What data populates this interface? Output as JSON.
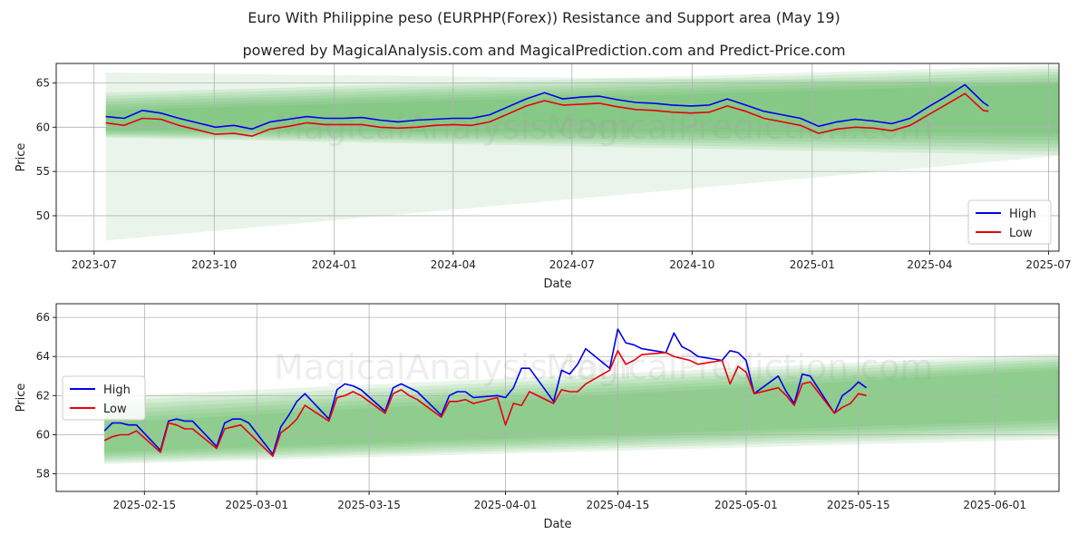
{
  "title": "Euro With Philippine peso (EURPHP(Forex)) Resistance and Support area (May 19)",
  "subtitle": "powered by MagicalAnalysis.com and MagicalPrediction.com and Predict-Price.com",
  "watermarks": [
    "MagicalAnalysis.com",
    "MagicalPrediction.com"
  ],
  "colors": {
    "high": "#0000ee",
    "low": "#e8000b",
    "band": "#4caf50"
  },
  "chart_data": [
    {
      "type": "line",
      "xlabel": "Date",
      "ylabel": "Price",
      "x_ticks": [
        "2023-07",
        "2023-10",
        "2024-01",
        "2024-04",
        "2024-07",
        "2024-10",
        "2025-01",
        "2025-04",
        "2025-07"
      ],
      "y_ticks": [
        50,
        55,
        60,
        65
      ],
      "xlim": [
        "2023-06-02",
        "2025-07-09"
      ],
      "ylim": [
        46.0,
        67.2
      ],
      "grid": true,
      "legend_position": "lower-right",
      "legend": [
        "High",
        "Low"
      ],
      "series": [
        {
          "name": "High",
          "x": [
            "2023-07-10",
            "2023-07-24",
            "2023-08-07",
            "2023-08-21",
            "2023-09-04",
            "2023-09-18",
            "2023-10-02",
            "2023-10-16",
            "2023-10-30",
            "2023-11-13",
            "2023-11-27",
            "2023-12-11",
            "2023-12-25",
            "2024-01-08",
            "2024-01-22",
            "2024-02-05",
            "2024-02-19",
            "2024-03-04",
            "2024-03-18",
            "2024-04-01",
            "2024-04-15",
            "2024-04-29",
            "2024-05-13",
            "2024-05-27",
            "2024-06-10",
            "2024-06-24",
            "2024-07-08",
            "2024-07-22",
            "2024-08-05",
            "2024-08-19",
            "2024-09-02",
            "2024-09-16",
            "2024-09-30",
            "2024-10-14",
            "2024-10-28",
            "2024-11-11",
            "2024-11-25",
            "2024-12-09",
            "2024-12-23",
            "2025-01-06",
            "2025-01-20",
            "2025-02-03",
            "2025-02-17",
            "2025-03-03",
            "2025-03-17",
            "2025-03-31",
            "2025-04-14",
            "2025-04-28",
            "2025-05-12",
            "2025-05-16"
          ],
          "values": [
            61.2,
            61.0,
            61.9,
            61.6,
            61.0,
            60.5,
            60.0,
            60.2,
            59.8,
            60.6,
            60.9,
            61.2,
            61.0,
            61.0,
            61.1,
            60.8,
            60.6,
            60.8,
            60.9,
            61.0,
            61.0,
            61.4,
            62.3,
            63.2,
            63.9,
            63.2,
            63.4,
            63.5,
            63.1,
            62.8,
            62.7,
            62.5,
            62.4,
            62.5,
            63.2,
            62.5,
            61.8,
            61.4,
            61.0,
            60.1,
            60.6,
            60.9,
            60.7,
            60.4,
            61.0,
            62.3,
            63.5,
            64.8,
            62.8,
            62.4
          ]
        },
        {
          "name": "Low",
          "x": [
            "2023-07-10",
            "2023-07-24",
            "2023-08-07",
            "2023-08-21",
            "2023-09-04",
            "2023-09-18",
            "2023-10-02",
            "2023-10-16",
            "2023-10-30",
            "2023-11-13",
            "2023-11-27",
            "2023-12-11",
            "2023-12-25",
            "2024-01-08",
            "2024-01-22",
            "2024-02-05",
            "2024-02-19",
            "2024-03-04",
            "2024-03-18",
            "2024-04-01",
            "2024-04-15",
            "2024-04-29",
            "2024-05-13",
            "2024-05-27",
            "2024-06-10",
            "2024-06-24",
            "2024-07-08",
            "2024-07-22",
            "2024-08-05",
            "2024-08-19",
            "2024-09-02",
            "2024-09-16",
            "2024-09-30",
            "2024-10-14",
            "2024-10-28",
            "2024-11-11",
            "2024-11-25",
            "2024-12-09",
            "2024-12-23",
            "2025-01-06",
            "2025-01-20",
            "2025-02-03",
            "2025-02-17",
            "2025-03-03",
            "2025-03-17",
            "2025-03-31",
            "2025-04-14",
            "2025-04-28",
            "2025-05-12",
            "2025-05-16"
          ],
          "values": [
            60.5,
            60.2,
            61.0,
            60.9,
            60.2,
            59.7,
            59.2,
            59.3,
            59.0,
            59.8,
            60.1,
            60.5,
            60.3,
            60.3,
            60.3,
            60.0,
            59.9,
            60.0,
            60.2,
            60.3,
            60.2,
            60.6,
            61.5,
            62.4,
            63.0,
            62.5,
            62.6,
            62.7,
            62.3,
            62.0,
            61.9,
            61.7,
            61.6,
            61.7,
            62.4,
            61.8,
            61.0,
            60.6,
            60.2,
            59.3,
            59.8,
            60.0,
            59.9,
            59.6,
            60.2,
            61.4,
            62.6,
            63.8,
            61.9,
            61.8
          ]
        }
      ]
    },
    {
      "type": "line",
      "xlabel": "Date",
      "ylabel": "Price",
      "x_ticks": [
        "2025-02-15",
        "2025-03-01",
        "2025-03-15",
        "2025-04-01",
        "2025-04-15",
        "2025-05-01",
        "2025-05-15",
        "2025-06-01"
      ],
      "y_ticks": [
        58,
        60,
        62,
        64,
        66
      ],
      "xlim": [
        "2025-02-04",
        "2025-06-09"
      ],
      "ylim": [
        57.1,
        66.7
      ],
      "grid": true,
      "legend_position": "upper-left",
      "legend": [
        "High",
        "Low"
      ],
      "series": [
        {
          "name": "High",
          "x": [
            "2025-02-10",
            "2025-02-11",
            "2025-02-12",
            "2025-02-13",
            "2025-02-14",
            "2025-02-17",
            "2025-02-18",
            "2025-02-19",
            "2025-02-20",
            "2025-02-21",
            "2025-02-24",
            "2025-02-25",
            "2025-02-26",
            "2025-02-27",
            "2025-02-28",
            "2025-03-03",
            "2025-03-04",
            "2025-03-05",
            "2025-03-06",
            "2025-03-07",
            "2025-03-10",
            "2025-03-11",
            "2025-03-12",
            "2025-03-13",
            "2025-03-14",
            "2025-03-17",
            "2025-03-18",
            "2025-03-19",
            "2025-03-20",
            "2025-03-21",
            "2025-03-24",
            "2025-03-25",
            "2025-03-26",
            "2025-03-27",
            "2025-03-28",
            "2025-03-31",
            "2025-04-01",
            "2025-04-02",
            "2025-04-03",
            "2025-04-04",
            "2025-04-07",
            "2025-04-08",
            "2025-04-09",
            "2025-04-10",
            "2025-04-11",
            "2025-04-14",
            "2025-04-15",
            "2025-04-16",
            "2025-04-17",
            "2025-04-18",
            "2025-04-21",
            "2025-04-22",
            "2025-04-23",
            "2025-04-24",
            "2025-04-25",
            "2025-04-28",
            "2025-04-29",
            "2025-04-30",
            "2025-05-01",
            "2025-05-02",
            "2025-05-05",
            "2025-05-06",
            "2025-05-07",
            "2025-05-08",
            "2025-05-09",
            "2025-05-12",
            "2025-05-13",
            "2025-05-14",
            "2025-05-15",
            "2025-05-16"
          ],
          "values": [
            60.2,
            60.6,
            60.6,
            60.5,
            60.5,
            59.2,
            60.7,
            60.8,
            60.7,
            60.7,
            59.4,
            60.6,
            60.8,
            60.8,
            60.6,
            59.0,
            60.4,
            61.0,
            61.7,
            62.1,
            60.8,
            62.3,
            62.6,
            62.5,
            62.3,
            61.2,
            62.4,
            62.6,
            62.4,
            62.2,
            61.0,
            62.0,
            62.2,
            62.2,
            61.9,
            62.0,
            61.9,
            62.4,
            63.4,
            63.4,
            61.7,
            63.3,
            63.1,
            63.6,
            64.4,
            63.4,
            65.4,
            64.7,
            64.6,
            64.4,
            64.2,
            65.2,
            64.5,
            64.3,
            64.0,
            63.8,
            64.3,
            64.2,
            63.8,
            62.1,
            63.0,
            62.2,
            61.6,
            63.1,
            63.0,
            61.1,
            62.0,
            62.3,
            62.7,
            62.4
          ]
        },
        {
          "name": "Low",
          "x": [
            "2025-02-10",
            "2025-02-11",
            "2025-02-12",
            "2025-02-13",
            "2025-02-14",
            "2025-02-17",
            "2025-02-18",
            "2025-02-19",
            "2025-02-20",
            "2025-02-21",
            "2025-02-24",
            "2025-02-25",
            "2025-02-26",
            "2025-02-27",
            "2025-02-28",
            "2025-03-03",
            "2025-03-04",
            "2025-03-05",
            "2025-03-06",
            "2025-03-07",
            "2025-03-10",
            "2025-03-11",
            "2025-03-12",
            "2025-03-13",
            "2025-03-14",
            "2025-03-17",
            "2025-03-18",
            "2025-03-19",
            "2025-03-20",
            "2025-03-21",
            "2025-03-24",
            "2025-03-25",
            "2025-03-26",
            "2025-03-27",
            "2025-03-28",
            "2025-03-31",
            "2025-04-01",
            "2025-04-02",
            "2025-04-03",
            "2025-04-04",
            "2025-04-07",
            "2025-04-08",
            "2025-04-09",
            "2025-04-10",
            "2025-04-11",
            "2025-04-14",
            "2025-04-15",
            "2025-04-16",
            "2025-04-17",
            "2025-04-18",
            "2025-04-21",
            "2025-04-22",
            "2025-04-23",
            "2025-04-24",
            "2025-04-25",
            "2025-04-28",
            "2025-04-29",
            "2025-04-30",
            "2025-05-01",
            "2025-05-02",
            "2025-05-05",
            "2025-05-06",
            "2025-05-07",
            "2025-05-08",
            "2025-05-09",
            "2025-05-12",
            "2025-05-13",
            "2025-05-14",
            "2025-05-15",
            "2025-05-16"
          ],
          "values": [
            59.7,
            59.9,
            60.0,
            60.0,
            60.2,
            59.1,
            60.6,
            60.5,
            60.3,
            60.3,
            59.3,
            60.3,
            60.4,
            60.5,
            60.1,
            58.9,
            60.1,
            60.4,
            60.8,
            61.5,
            60.7,
            61.9,
            62.0,
            62.2,
            62.0,
            61.1,
            62.1,
            62.3,
            62.0,
            61.8,
            60.9,
            61.7,
            61.7,
            61.8,
            61.6,
            61.9,
            60.5,
            61.6,
            61.5,
            62.2,
            61.6,
            62.3,
            62.2,
            62.2,
            62.6,
            63.3,
            64.3,
            63.6,
            63.8,
            64.1,
            64.2,
            64.0,
            63.9,
            63.8,
            63.6,
            63.8,
            62.6,
            63.5,
            63.2,
            62.1,
            62.4,
            62.0,
            61.5,
            62.6,
            62.7,
            61.1,
            61.4,
            61.6,
            62.1,
            62.0
          ]
        }
      ]
    }
  ]
}
